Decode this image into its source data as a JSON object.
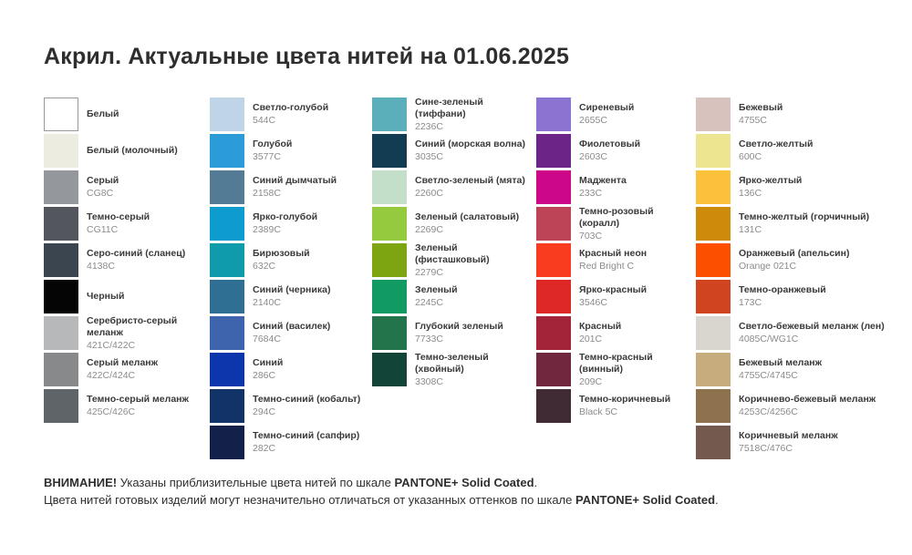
{
  "title": "Акрил. Актуальные цвета нитей на 01.06.2025",
  "columns": [
    {
      "items": [
        {
          "name": "Белый",
          "code": "",
          "color": "#FFFFFF",
          "border": true
        },
        {
          "name": "Белый (молочный)",
          "code": "",
          "color": "#ECEDE0"
        },
        {
          "name": "Серый",
          "code": "CG8C",
          "color": "#94979C"
        },
        {
          "name": "Темно-серый",
          "code": "CG11C",
          "color": "#53565C"
        },
        {
          "name": "Серо-синий (сланец)",
          "code": "4138C",
          "color": "#3A4550"
        },
        {
          "name": "Черный",
          "code": "",
          "color": "#050505"
        },
        {
          "name": "Серебристо-серый меланж",
          "code": "421C/422C",
          "color": "#B6B8B9"
        },
        {
          "name": "Серый меланж",
          "code": "422C/424C",
          "color": "#87898B"
        },
        {
          "name": "Темно-серый меланж",
          "code": "425C/426C",
          "color": "#5F6468"
        }
      ]
    },
    {
      "items": [
        {
          "name": "Светло-голубой",
          "code": "544C",
          "color": "#BFD4E7"
        },
        {
          "name": "Голубой",
          "code": "3577C",
          "color": "#2B9CD8"
        },
        {
          "name": "Синий дымчатый",
          "code": "2158C",
          "color": "#547B96"
        },
        {
          "name": "Ярко-голубой",
          "code": "2389C",
          "color": "#0E9BCE"
        },
        {
          "name": "Бирюзовый",
          "code": "632C",
          "color": "#0F9BAB"
        },
        {
          "name": "Синий (черника)",
          "code": "2140C",
          "color": "#2F6F93"
        },
        {
          "name": "Синий (василек)",
          "code": "7684C",
          "color": "#3E64AE"
        },
        {
          "name": "Синий",
          "code": "286C",
          "color": "#0D35AC"
        },
        {
          "name": "Темно-синий (кобальт)",
          "code": "294C",
          "color": "#113367"
        },
        {
          "name": "Темно-синий (сапфир)",
          "code": "282C",
          "color": "#13204A"
        }
      ]
    },
    {
      "items": [
        {
          "name": "Сине-зеленый (тиффани)",
          "code": "2236C",
          "color": "#5AAFBA"
        },
        {
          "name": "Синий (морская волна)",
          "code": "3035C",
          "color": "#123C51"
        },
        {
          "name": "Светло-зеленый (мята)",
          "code": "2260C",
          "color": "#C4DFC9"
        },
        {
          "name": "Зеленый (салатовый)",
          "code": "2269C",
          "color": "#96CA3E"
        },
        {
          "name": "Зеленый (фисташковый)",
          "code": "2279C",
          "color": "#7DA512"
        },
        {
          "name": "Зеленый",
          "code": "2245C",
          "color": "#119A62"
        },
        {
          "name": "Глубокий зеленый",
          "code": "7733C",
          "color": "#23744A"
        },
        {
          "name": "Темно-зеленый (хвойный)",
          "code": "3308C",
          "color": "#124538"
        }
      ]
    },
    {
      "items": [
        {
          "name": "Сиреневый",
          "code": "2655C",
          "color": "#8B74D1"
        },
        {
          "name": "Фиолетовый",
          "code": "2603C",
          "color": "#6C2486"
        },
        {
          "name": "Маджента",
          "code": "233C",
          "color": "#CC0788"
        },
        {
          "name": "Темно-розовый (коралл)",
          "code": "703C",
          "color": "#BC4456"
        },
        {
          "name": "Красный неон",
          "code": "Red Bright C",
          "color": "#F93B20"
        },
        {
          "name": "Ярко-красный",
          "code": "3546C",
          "color": "#DE2826"
        },
        {
          "name": "Красный",
          "code": "201C",
          "color": "#A32438"
        },
        {
          "name": "Темно-красный (винный)",
          "code": "209C",
          "color": "#71283E"
        },
        {
          "name": "Темно-коричневый",
          "code": "Black 5C",
          "color": "#402A34"
        }
      ]
    },
    {
      "items": [
        {
          "name": "Бежевый",
          "code": "4755C",
          "color": "#D7C2BD"
        },
        {
          "name": "Светло-желтый",
          "code": "600C",
          "color": "#EEE591"
        },
        {
          "name": "Ярко-желтый",
          "code": "136C",
          "color": "#FBC13A"
        },
        {
          "name": "Темно-желтый (горчичный)",
          "code": "131C",
          "color": "#CE8B0B"
        },
        {
          "name": "Оранжевый (апельсин)",
          "code": "Orange 021C",
          "color": "#FC5000"
        },
        {
          "name": "Темно-оранжевый",
          "code": "173C",
          "color": "#D0451F"
        },
        {
          "name": "Светло-бежевый меланж (лен)",
          "code": "4085C/WG1C",
          "color": "#D9D6CF"
        },
        {
          "name": "Бежевый меланж",
          "code": "4755C/4745C",
          "color": "#C7AC7D"
        },
        {
          "name": "Коричнево-бежевый меланж",
          "code": "4253C/4256C",
          "color": "#8E714D"
        },
        {
          "name": "Коричневый меланж",
          "code": "7518C/476C",
          "color": "#74594F"
        }
      ]
    }
  ],
  "footer": {
    "lines": [
      {
        "segments": [
          {
            "text": "ВНИМАНИЕ!",
            "bold": true
          },
          {
            "text": " Указаны приблизительные цвета нитей по шкале ",
            "bold": false
          },
          {
            "text": "PANTONE+ Solid Coated",
            "bold": true
          },
          {
            "text": ".",
            "bold": false
          }
        ]
      },
      {
        "segments": [
          {
            "text": "Цвета нитей готовых изделий могут незначительно отличаться от указанных оттенков по шкале ",
            "bold": false
          },
          {
            "text": "PANTONE+ Solid Coated",
            "bold": true
          },
          {
            "text": ".",
            "bold": false
          }
        ]
      }
    ]
  }
}
